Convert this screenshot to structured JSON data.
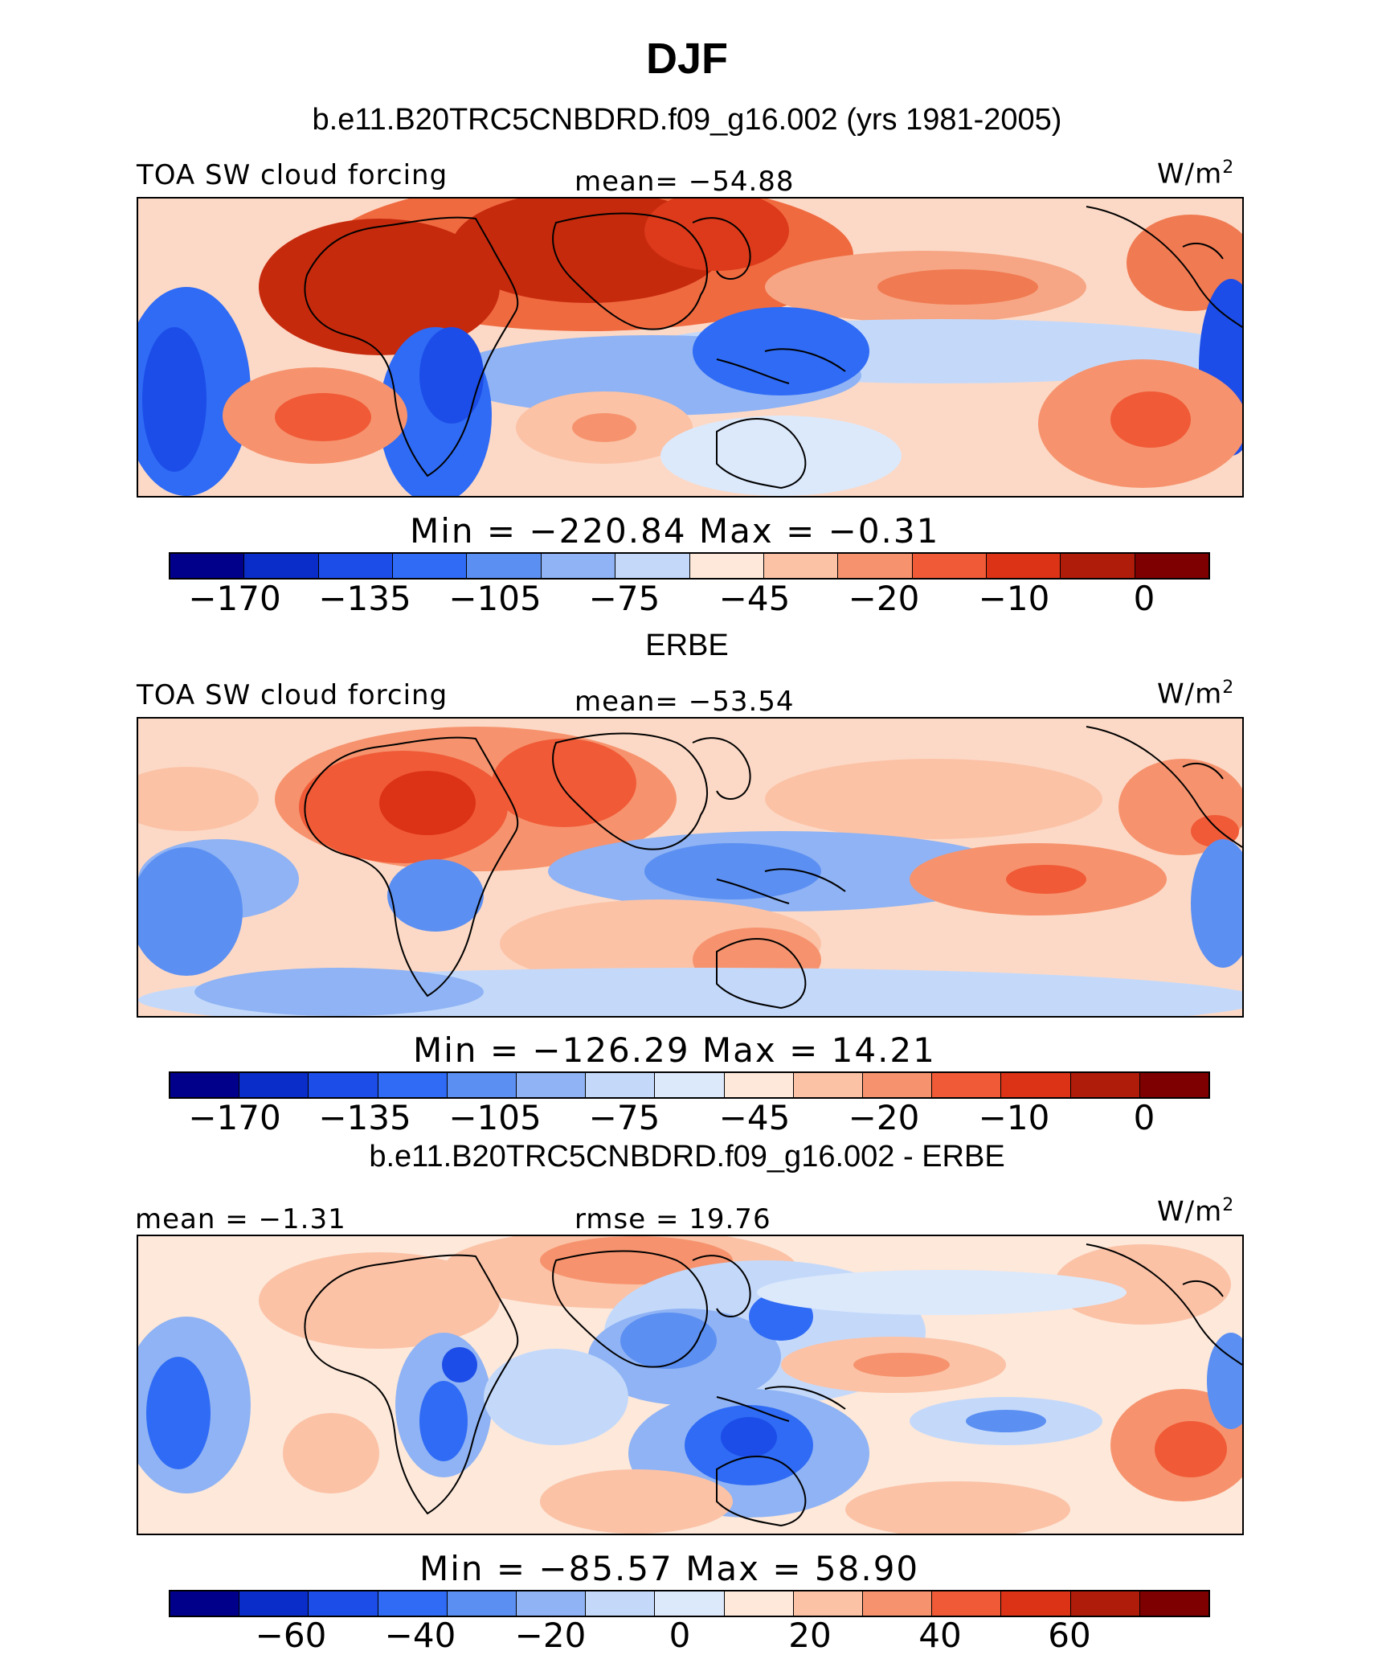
{
  "figure": {
    "title": "DJF",
    "panels": [
      {
        "subtitle": "b.e11.B20TRC5CNBDRD.f09_g16.002 (yrs 1981-2005)",
        "left_label": "TOA SW cloud forcing",
        "center_label": "mean= −54.88",
        "units": "W/m",
        "units_exp": "2",
        "minmax": "Min  =  −220.84  Max  =    −0.31",
        "ticks": [
          "−170",
          "−135",
          "−105",
          "−75",
          "−45",
          "−20",
          "−10",
          "0"
        ]
      },
      {
        "subtitle": "ERBE",
        "left_label": "TOA SW cloud forcing",
        "center_label": "mean= −53.54",
        "units": "W/m",
        "units_exp": "2",
        "minmax": "Min  =  −126.29  Max  =    14.21",
        "ticks": [
          "−170",
          "−135",
          "−105",
          "−75",
          "−45",
          "−20",
          "−10",
          "0"
        ]
      },
      {
        "subtitle": "b.e11.B20TRC5CNBDRD.f09_g16.002 - ERBE",
        "left_label": "mean  =   −1.31",
        "center_label": "rmse  =   19.76",
        "units": "W/m",
        "units_exp": "2",
        "minmax": "Min  =  −85.57  Max  =    58.90",
        "ticks": [
          "−60",
          "−40",
          "−20",
          "0",
          "20",
          "40",
          "60"
        ]
      }
    ]
  },
  "chart_data": {
    "type": "heatmap",
    "title": "DJF",
    "variable": "TOA SW cloud forcing",
    "units": "W/m2",
    "panels": [
      {
        "name": "b.e11.B20TRC5CNBDRD.f09_g16.002 (yrs 1981-2005)",
        "mean": -54.88,
        "min": -220.84,
        "max": -0.31,
        "colorbar_levels": [
          -170,
          -135,
          -105,
          -75,
          -45,
          -20,
          -10,
          0
        ]
      },
      {
        "name": "ERBE",
        "mean": -53.54,
        "min": -126.29,
        "max": 14.21,
        "colorbar_levels": [
          -170,
          -135,
          -105,
          -75,
          -45,
          -20,
          -10,
          0
        ]
      },
      {
        "name": "b.e11.B20TRC5CNBDRD.f09_g16.002 - ERBE",
        "mean": -1.31,
        "rmse": 19.76,
        "min": -85.57,
        "max": 58.9,
        "colorbar_levels": [
          -60,
          -40,
          -20,
          0,
          20,
          40,
          60
        ]
      }
    ],
    "colors": [
      "#00008b",
      "#0a2cc8",
      "#1c4de8",
      "#2f6bf5",
      "#5b8ff2",
      "#8fb3f4",
      "#c4d9fa",
      "#dce9fb",
      "#fde8da",
      "#fbc2a6",
      "#f6936e",
      "#f05a37",
      "#dc3215",
      "#b01c0a",
      "#7f0000"
    ]
  }
}
